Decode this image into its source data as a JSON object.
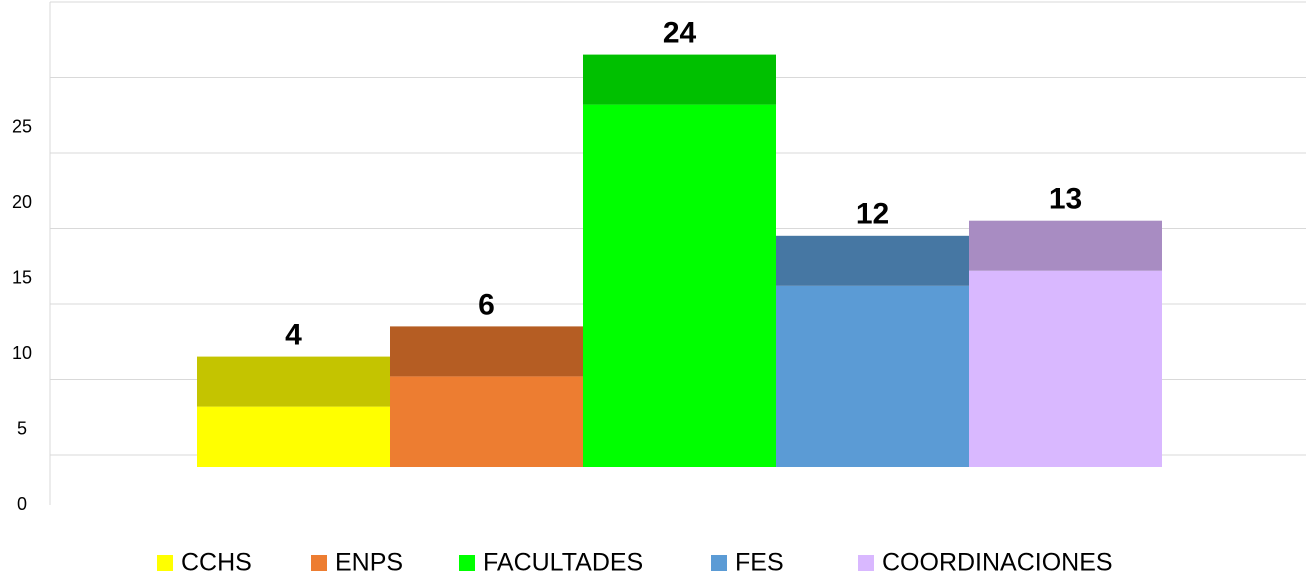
{
  "chart_data": {
    "type": "bar3d",
    "categories": [
      "CCHS",
      "ENPS",
      "FACULTADES",
      "FES",
      "COORDINACIONES"
    ],
    "values": [
      4,
      6,
      24,
      12,
      13
    ],
    "colors": [
      "#ffff00",
      "#ed7d31",
      "#00ff00",
      "#5b9bd5",
      "#d9b8ff"
    ],
    "top_colors": [
      "#c4c400",
      "#b55d23",
      "#00c000",
      "#4677a3",
      "#a88cc2"
    ],
    "ylim": [
      0,
      33
    ],
    "yticks": [
      0,
      5,
      10,
      15,
      20,
      25
    ],
    "grid": true,
    "legend": "bottom"
  }
}
